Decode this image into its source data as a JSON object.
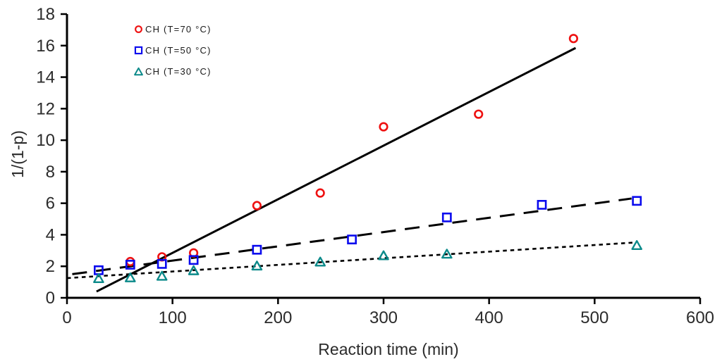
{
  "chart_data": {
    "type": "scatter",
    "title": "",
    "xlabel": "Reaction time (min)",
    "ylabel": "1/(1-p)",
    "xlim": [
      0,
      600
    ],
    "ylim": [
      0,
      18
    ],
    "x_ticks": [
      0,
      100,
      200,
      300,
      400,
      500,
      600
    ],
    "y_ticks": [
      0,
      2,
      4,
      6,
      8,
      10,
      12,
      14,
      16,
      18
    ],
    "grid": false,
    "legend_position": "inside-top-left",
    "axis_color": "#000000",
    "tick_label_color": "#2b2b2b",
    "series": [
      {
        "name": "CH (T=70 °C)",
        "marker": "circle",
        "color": "#ee1111",
        "points": [
          [
            60,
            2.3
          ],
          [
            90,
            2.6
          ],
          [
            120,
            2.85
          ],
          [
            180,
            5.85
          ],
          [
            240,
            6.65
          ],
          [
            300,
            10.85
          ],
          [
            390,
            11.65
          ],
          [
            480,
            16.45
          ]
        ],
        "trendline": {
          "style": "solid",
          "color": "#000000",
          "from": [
            28,
            0.4
          ],
          "to": [
            482,
            15.85
          ]
        }
      },
      {
        "name": "CH (T=50 °C)",
        "marker": "square",
        "color": "#0a0aee",
        "points": [
          [
            30,
            1.75
          ],
          [
            60,
            2.1
          ],
          [
            90,
            2.15
          ],
          [
            120,
            2.4
          ],
          [
            180,
            3.05
          ],
          [
            270,
            3.7
          ],
          [
            360,
            5.1
          ],
          [
            450,
            5.9
          ],
          [
            540,
            6.15
          ]
        ],
        "trendline": {
          "style": "long-dash",
          "color": "#000000",
          "from": [
            5,
            1.5
          ],
          "to": [
            535,
            6.3
          ]
        }
      },
      {
        "name": "CH (T=30 °C)",
        "marker": "triangle",
        "color": "#0b8a8a",
        "points": [
          [
            30,
            1.25
          ],
          [
            60,
            1.3
          ],
          [
            90,
            1.4
          ],
          [
            120,
            1.75
          ],
          [
            180,
            2.05
          ],
          [
            240,
            2.3
          ],
          [
            300,
            2.7
          ],
          [
            360,
            2.8
          ],
          [
            540,
            3.35
          ]
        ],
        "trendline": {
          "style": "short-dash",
          "color": "#000000",
          "from": [
            0,
            1.25
          ],
          "to": [
            536,
            3.5
          ]
        }
      }
    ]
  }
}
